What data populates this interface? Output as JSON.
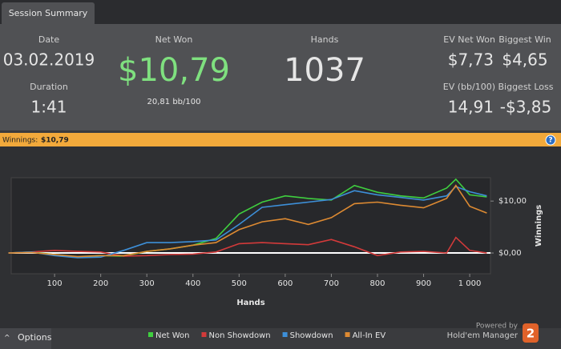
{
  "tab": "Session Summary",
  "summary": {
    "date": {
      "label": "Date",
      "value": "03.02.2019"
    },
    "duration": {
      "label": "Duration",
      "value": "1:41"
    },
    "net_won": {
      "label": "Net Won",
      "value": "$10,79",
      "sub": "20,81 bb/100"
    },
    "hands": {
      "label": "Hands",
      "value": "1037"
    },
    "ev_net_won": {
      "label": "EV Net Won",
      "value": "$7,73"
    },
    "biggest_win": {
      "label": "Biggest Win",
      "value": "$4,65"
    },
    "ev_bb": {
      "label": "EV (bb/100)",
      "value": "14,91"
    },
    "biggest_loss": {
      "label": "Biggest Loss",
      "value": "-$3,85"
    }
  },
  "winnings_bar": {
    "label": "Winnings:",
    "value": "$10,79",
    "help": "?"
  },
  "chart_data": {
    "type": "line",
    "x_label": "Hands",
    "y_label": "Winnings",
    "x": [
      0,
      50,
      100,
      150,
      200,
      250,
      300,
      350,
      400,
      450,
      500,
      550,
      600,
      650,
      700,
      750,
      800,
      850,
      900,
      950,
      970,
      1000,
      1037
    ],
    "series": [
      {
        "name": "Net Won",
        "color": "#3fcf3f",
        "values": [
          0,
          0.2,
          -0.3,
          -0.8,
          -0.5,
          -0.6,
          0.3,
          0.8,
          1.5,
          2.8,
          7.5,
          9.8,
          11,
          10.5,
          10.2,
          13,
          11.7,
          11,
          10.6,
          12.5,
          14.2,
          11.2,
          10.8
        ]
      },
      {
        "name": "Non Showdown",
        "color": "#d23a3a",
        "values": [
          0,
          0.2,
          0.5,
          0.3,
          0.2,
          -0.6,
          -0.5,
          -0.3,
          -0.2,
          0.2,
          1.8,
          2,
          1.8,
          1.6,
          2.6,
          1.2,
          -0.5,
          0.2,
          0.3,
          0,
          3,
          0.5,
          0
        ]
      },
      {
        "name": "Showdown",
        "color": "#3d8fd8",
        "values": [
          0,
          0.2,
          -0.5,
          -0.9,
          -0.8,
          0.5,
          2,
          2,
          2.2,
          2.5,
          5.5,
          8.8,
          9.3,
          9.8,
          10.3,
          12,
          11.2,
          10.7,
          10.2,
          11,
          12.8,
          11.8,
          11
        ]
      },
      {
        "name": "All-In EV",
        "color": "#dd8a32",
        "values": [
          0,
          0.1,
          -0.3,
          -0.7,
          -0.5,
          -0.5,
          0.3,
          0.8,
          1.5,
          2,
          4.5,
          6,
          6.6,
          5.5,
          6.8,
          9.5,
          9.8,
          9.2,
          8.7,
          10.5,
          13,
          9,
          7.7
        ]
      }
    ],
    "xlim": [
      6,
      1045
    ],
    "xticks": [
      100,
      200,
      300,
      400,
      500,
      600,
      700,
      800,
      900,
      {
        "value": 1000,
        "label": "1 000"
      }
    ],
    "ylim": [
      -4,
      14.5
    ],
    "yticks": [
      {
        "value": 0,
        "label": "$0,00"
      },
      {
        "value": 10,
        "label": "$10,00"
      }
    ],
    "legend": "bottom"
  },
  "footer": {
    "options": "Options",
    "powered": "Powered by",
    "brand": "Hold'em Manager",
    "version": "2"
  }
}
